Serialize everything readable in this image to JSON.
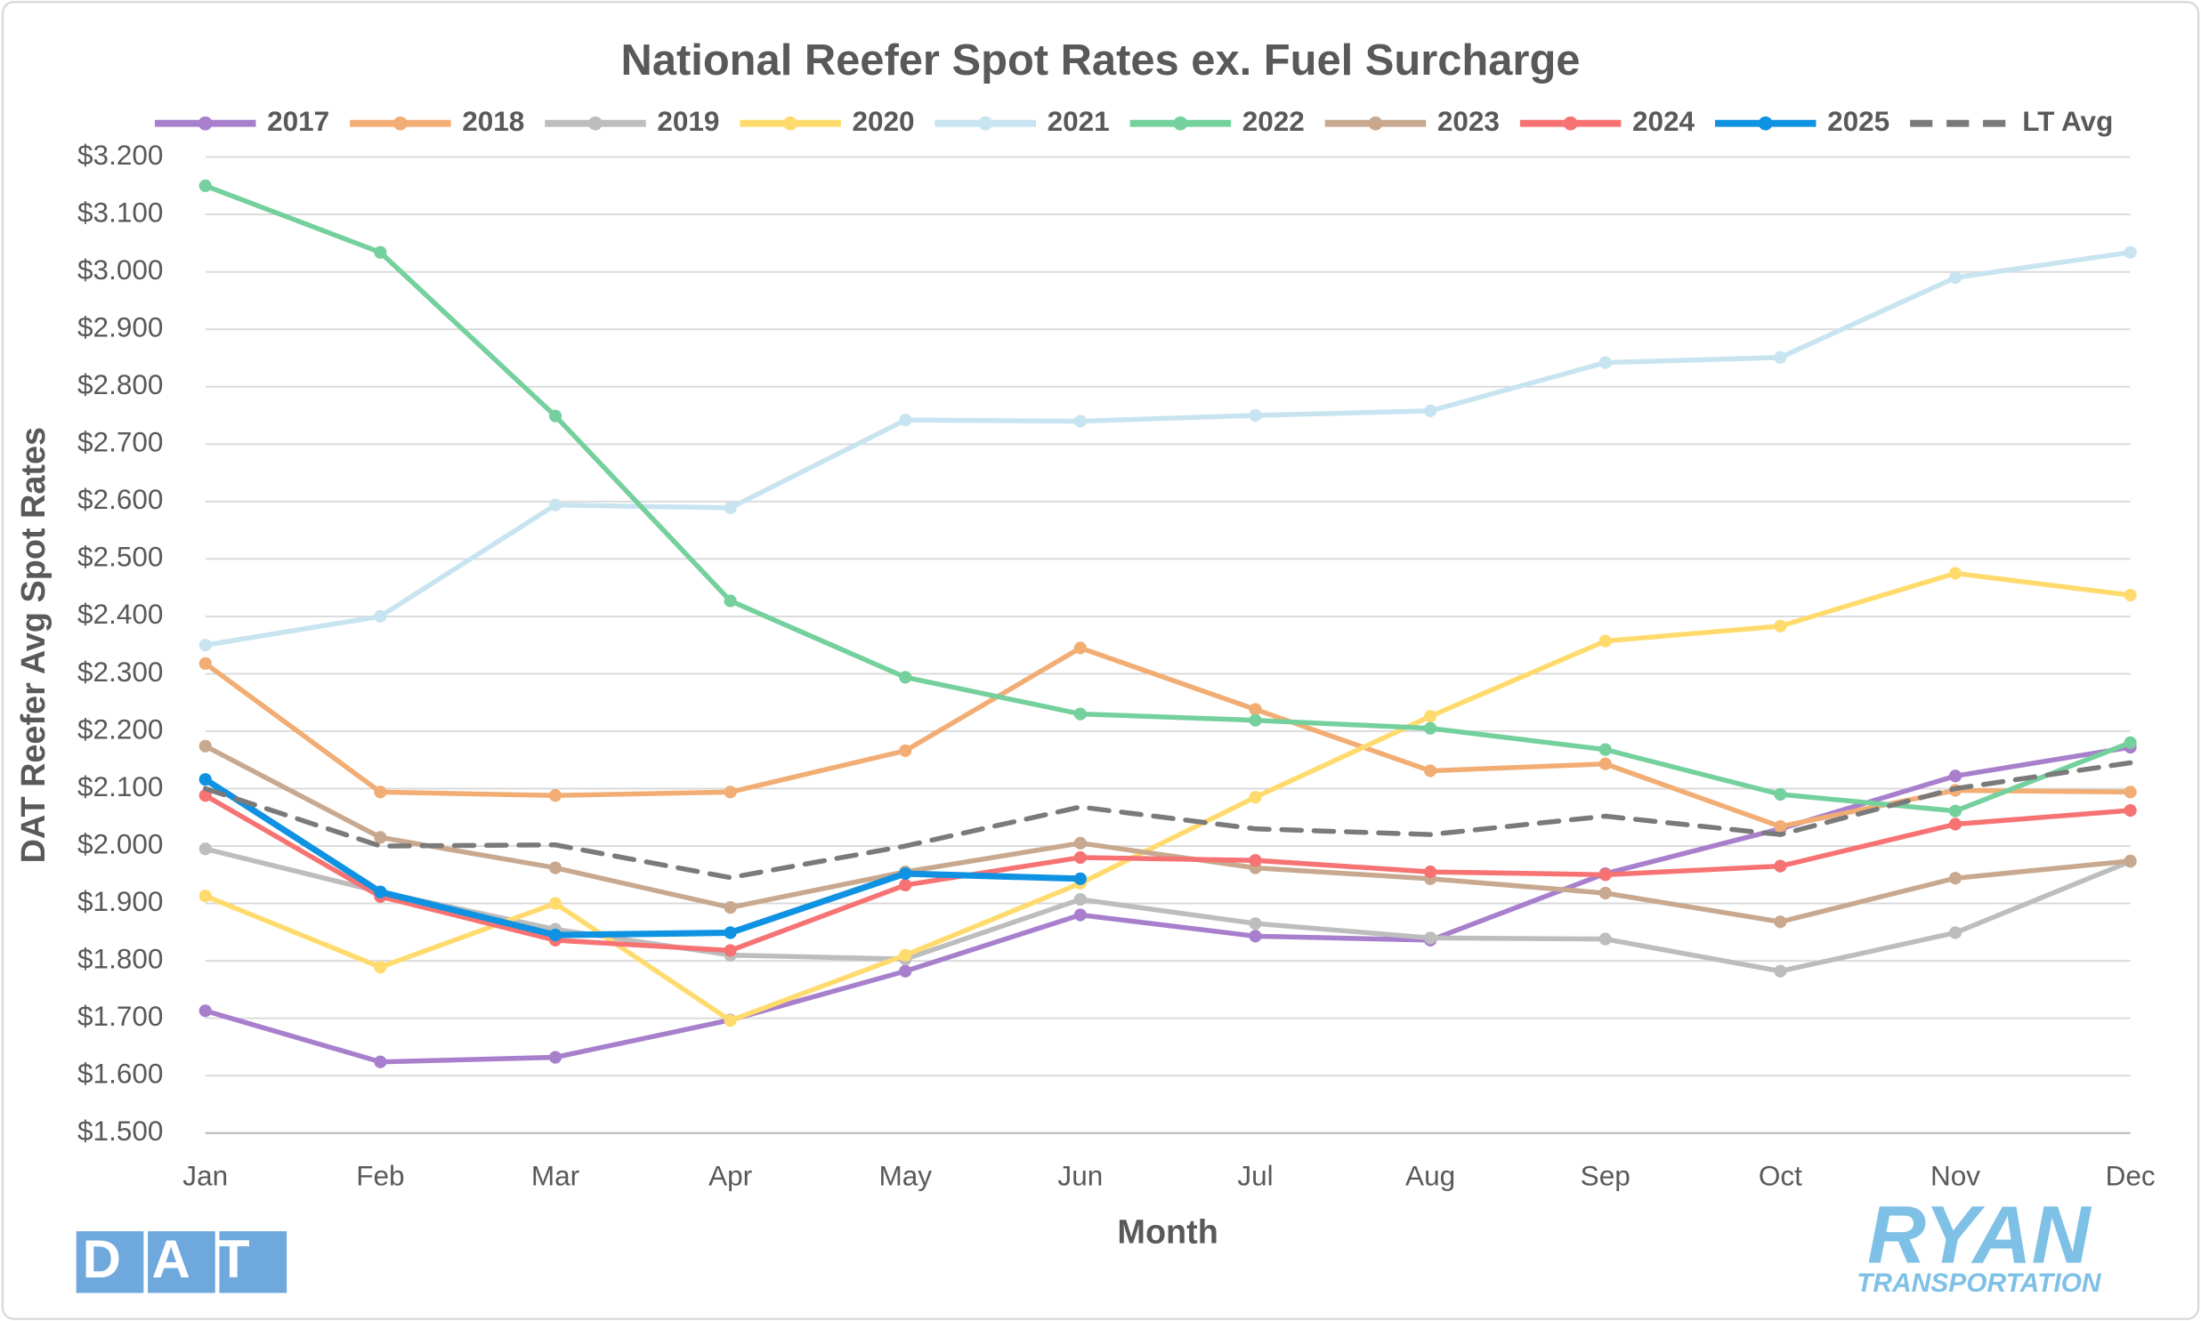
{
  "chart_data": {
    "type": "line",
    "title": "National Reefer Spot Rates ex. Fuel Surcharge",
    "x_label": "Month",
    "y_label": "DAT Reefer Avg Spot Rates",
    "categories": [
      "Jan",
      "Feb",
      "Mar",
      "Apr",
      "May",
      "Jun",
      "Jul",
      "Aug",
      "Sep",
      "Oct",
      "Nov",
      "Dec"
    ],
    "ylim": [
      1.5,
      3.2
    ],
    "yticks": [
      {
        "value": 1.5,
        "label": "$1.500"
      },
      {
        "value": 1.6,
        "label": "$1.600"
      },
      {
        "value": 1.7,
        "label": "$1.700"
      },
      {
        "value": 1.8,
        "label": "$1.800"
      },
      {
        "value": 1.9,
        "label": "$1.900"
      },
      {
        "value": 2.0,
        "label": "$2.000"
      },
      {
        "value": 2.1,
        "label": "$2.100"
      },
      {
        "value": 2.2,
        "label": "$2.200"
      },
      {
        "value": 2.3,
        "label": "$2.300"
      },
      {
        "value": 2.4,
        "label": "$2.400"
      },
      {
        "value": 2.5,
        "label": "$2.500"
      },
      {
        "value": 2.6,
        "label": "$2.600"
      },
      {
        "value": 2.7,
        "label": "$2.700"
      },
      {
        "value": 2.8,
        "label": "$2.800"
      },
      {
        "value": 2.9,
        "label": "$2.900"
      },
      {
        "value": 3.0,
        "label": "$3.000"
      },
      {
        "value": 3.1,
        "label": "$3.100"
      },
      {
        "value": 3.2,
        "label": "$3.200"
      }
    ],
    "grid": true,
    "legend": "top",
    "series": [
      {
        "name": "2017",
        "color": "#a77fcc",
        "line_width": 3.5,
        "markers": true,
        "values": [
          1.713,
          1.624,
          1.632,
          1.697,
          1.782,
          1.88,
          1.843,
          1.836,
          1.952,
          2.03,
          2.122,
          2.172
        ]
      },
      {
        "name": "2018",
        "color": "#f2ad74",
        "line_width": 3.5,
        "markers": true,
        "values": [
          2.318,
          2.094,
          2.088,
          2.094,
          2.166,
          2.345,
          2.238,
          2.131,
          2.143,
          2.034,
          2.097,
          2.094
        ]
      },
      {
        "name": "2019",
        "color": "#bdbdbd",
        "line_width": 3.5,
        "markers": true,
        "values": [
          1.995,
          1.92,
          1.855,
          1.81,
          1.803,
          1.907,
          1.865,
          1.84,
          1.838,
          1.782,
          1.849,
          1.973
        ]
      },
      {
        "name": "2020",
        "color": "#ffdb6e",
        "line_width": 3.5,
        "markers": true,
        "values": [
          1.913,
          1.789,
          1.9,
          1.696,
          1.81,
          1.935,
          2.085,
          2.226,
          2.357,
          2.383,
          2.475,
          2.437
        ]
      },
      {
        "name": "2021",
        "color": "#c7e4f0",
        "line_width": 3.5,
        "markers": true,
        "values": [
          2.35,
          2.4,
          2.594,
          2.589,
          2.742,
          2.74,
          2.75,
          2.758,
          2.842,
          2.851,
          2.99,
          3.034
        ]
      },
      {
        "name": "2022",
        "color": "#74d09c",
        "line_width": 3.5,
        "markers": true,
        "values": [
          3.15,
          3.034,
          2.749,
          2.427,
          2.294,
          2.23,
          2.219,
          2.205,
          2.168,
          2.09,
          2.061,
          2.18
        ]
      },
      {
        "name": "2023",
        "color": "#c8a98f",
        "line_width": 3.5,
        "markers": true,
        "values": [
          2.174,
          2.015,
          1.962,
          1.893,
          1.955,
          2.005,
          1.962,
          1.943,
          1.918,
          1.868,
          1.944,
          1.974
        ]
      },
      {
        "name": "2024",
        "color": "#f77272",
        "line_width": 3.5,
        "markers": true,
        "values": [
          2.088,
          1.912,
          1.836,
          1.818,
          1.932,
          1.98,
          1.975,
          1.955,
          1.95,
          1.965,
          2.038,
          2.062
        ]
      },
      {
        "name": "2025",
        "color": "#1092e2",
        "line_width": 4.5,
        "markers": true,
        "values": [
          2.116,
          1.92,
          1.845,
          1.849,
          1.952,
          1.943,
          null,
          null,
          null,
          null,
          null,
          null
        ]
      },
      {
        "name": "LT Avg",
        "color": "#7a7a7a",
        "line_width": 3.5,
        "markers": false,
        "dashed": true,
        "values": [
          2.1,
          2.0,
          2.002,
          1.945,
          2.0,
          2.068,
          2.03,
          2.02,
          2.052,
          2.02,
          2.1,
          2.145
        ]
      }
    ]
  },
  "logos": {
    "left": "DAT",
    "right": "RYAN",
    "right_sub": "TRANSPORTATION"
  }
}
